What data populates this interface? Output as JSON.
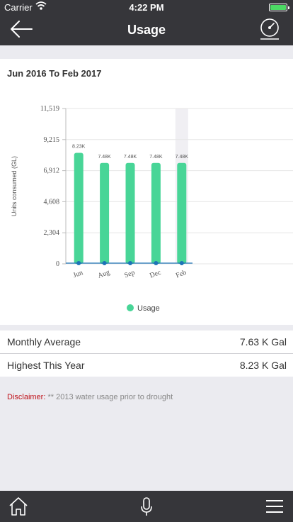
{
  "status_bar": {
    "carrier": "Carrier",
    "time": "4:22 PM"
  },
  "nav": {
    "title": "Usage"
  },
  "usage": {
    "date_range": "Jun 2016 To Feb 2017",
    "summary": [
      {
        "label": "Monthly Average",
        "value": "7.63 K Gal"
      },
      {
        "label": "Highest This Year",
        "value": "8.23 K Gal"
      }
    ],
    "disclaimer": {
      "label": "Disclaimer:",
      "text": "** 2013 water usage prior to drought"
    }
  },
  "chart_data": {
    "type": "bar",
    "title": "",
    "ylabel": "Units consumed (GL)",
    "xlabel": "",
    "categories": [
      "Jun",
      "Aug",
      "Sep",
      "Dec",
      "Feb"
    ],
    "series": [
      {
        "name": "Usage",
        "values": [
          8230,
          7480,
          7480,
          7480,
          7480
        ]
      }
    ],
    "data_labels": [
      "8.23K",
      "7.48K",
      "7.48K",
      "7.48K",
      "7.48K"
    ],
    "y_ticks": [
      "0",
      "2,304",
      "4,608",
      "6,912",
      "9,215",
      "11,519"
    ],
    "ylim": [
      0,
      11519
    ],
    "highlighted_category": "Feb",
    "legend": "bottom",
    "colors": {
      "bar": "#48d597",
      "baseline": "#1f73b7",
      "highlight": "#f0eff3"
    }
  }
}
